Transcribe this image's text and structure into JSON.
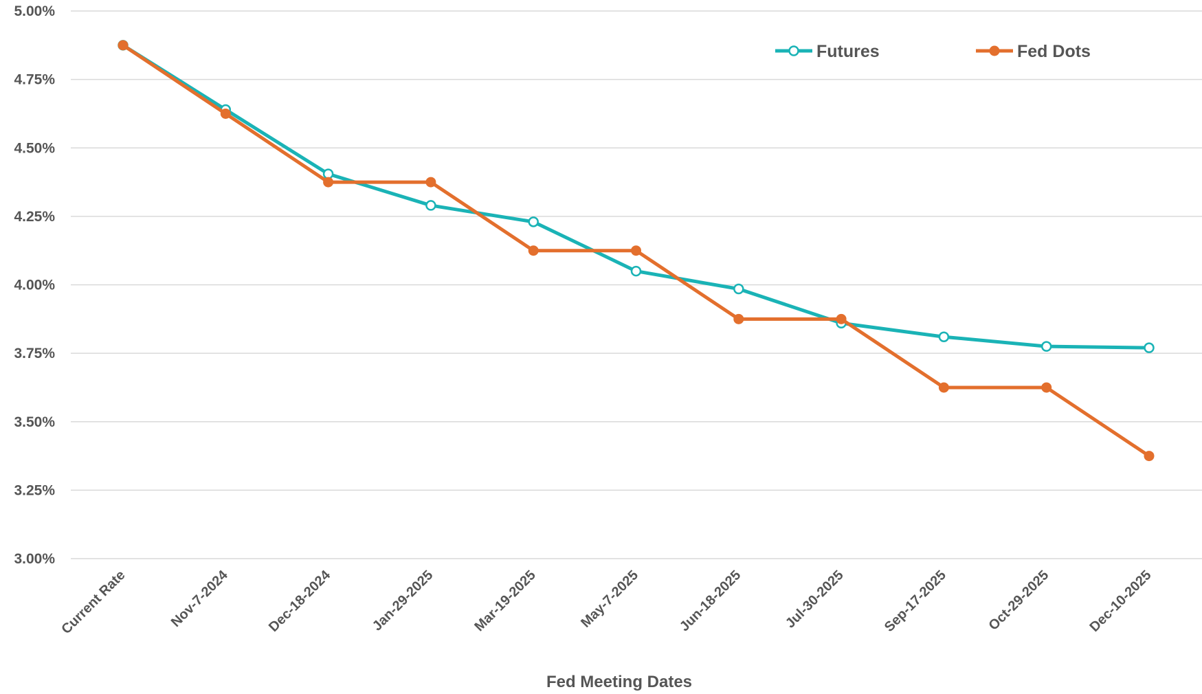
{
  "chart_data": {
    "type": "line",
    "title": "",
    "xlabel": "Fed Meeting Dates",
    "ylabel": "",
    "categories": [
      "Current Rate",
      "Nov-7-2024",
      "Dec-18-2024",
      "Jan-29-2025",
      "Mar-19-2025",
      "May-7-2025",
      "Jun-18-2025",
      "Jul-30-2025",
      "Sep-17-2025",
      "Oct-29-2025",
      "Dec-10-2025"
    ],
    "series": [
      {
        "name": "Futures",
        "color": "#1ab3b6",
        "marker": "hollow-circle",
        "values": [
          4.875,
          4.64,
          4.405,
          4.29,
          4.23,
          4.05,
          3.985,
          3.86,
          3.81,
          3.775,
          3.77
        ]
      },
      {
        "name": "Fed Dots",
        "color": "#e36f2d",
        "marker": "filled-circle",
        "values": [
          4.875,
          4.625,
          4.375,
          4.375,
          4.125,
          4.125,
          3.875,
          3.875,
          3.625,
          3.625,
          3.375
        ]
      }
    ],
    "ylim": [
      3.0,
      5.0
    ],
    "yticks": [
      "3.00%",
      "3.25%",
      "3.50%",
      "3.75%",
      "4.00%",
      "4.25%",
      "4.50%",
      "4.75%",
      "5.00%"
    ],
    "ytick_values": [
      3.0,
      3.25,
      3.5,
      3.75,
      4.0,
      4.25,
      4.5,
      4.75,
      5.0
    ],
    "grid": true,
    "legend_position": "top-right"
  }
}
